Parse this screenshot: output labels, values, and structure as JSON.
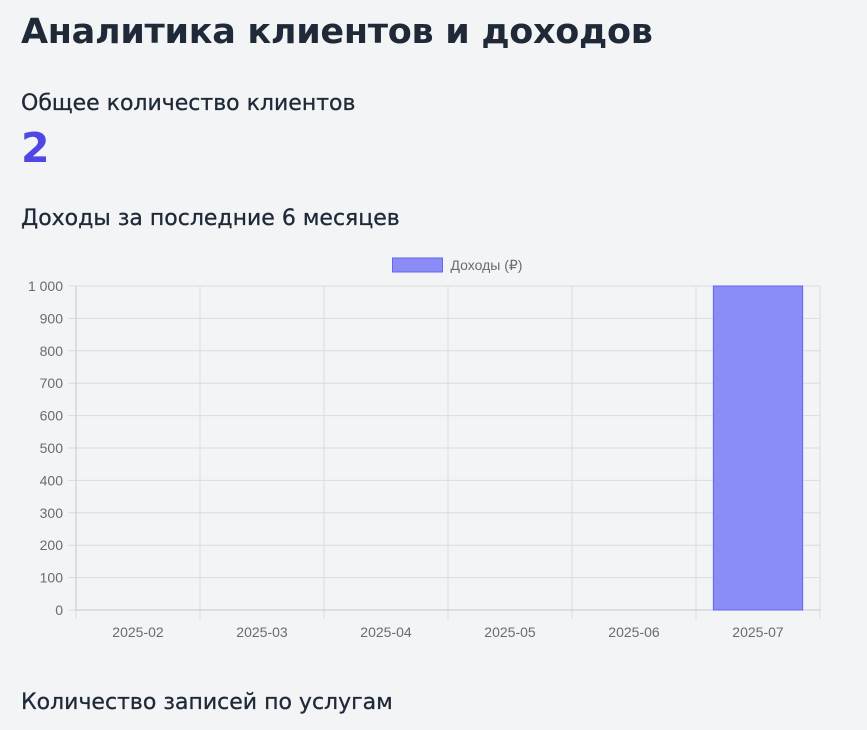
{
  "page": {
    "title": "Аналитика клиентов и доходов",
    "clients_title": "Общее количество клиентов",
    "clients_count": "2",
    "income_title": "Доходы за последние 6 месяцев",
    "services_title": "Количество записей по услугам"
  },
  "chart_data": {
    "type": "bar",
    "categories": [
      "2025-02",
      "2025-03",
      "2025-04",
      "2025-05",
      "2025-06",
      "2025-07"
    ],
    "series": [
      {
        "name": "Доходы (₽)",
        "values": [
          0,
          0,
          0,
          0,
          0,
          1000
        ]
      }
    ],
    "ylim": [
      0,
      1000
    ],
    "yticks": [
      0,
      100,
      200,
      300,
      400,
      500,
      600,
      700,
      800,
      900,
      1000
    ],
    "ytick_labels": [
      "0",
      "100",
      "200",
      "300",
      "400",
      "500",
      "600",
      "700",
      "800",
      "900",
      "1 000"
    ],
    "legend": "top-center",
    "grid": true,
    "colors": {
      "bar_fill": "#8b8cf5",
      "bar_stroke": "#6366f1",
      "grid": "#dcdcdc",
      "accent": "#4f46e5"
    }
  }
}
